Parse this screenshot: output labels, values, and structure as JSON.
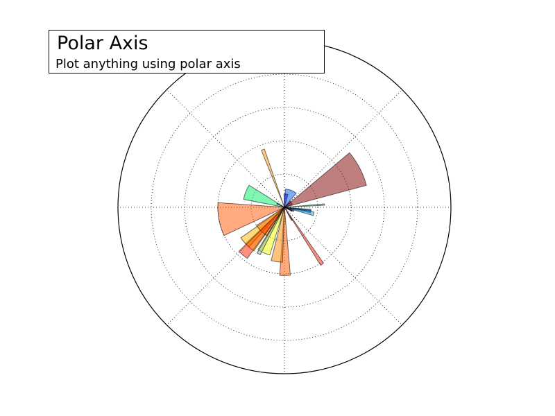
{
  "header": {
    "title": "Polar Axis",
    "subtitle": "Plot anything using polar axis"
  },
  "chart_data": {
    "type": "bar",
    "projection": "polar",
    "title": "Polar Axis",
    "subtitle": "Plot anything using polar axis",
    "theta_unit": "degrees",
    "r_range": [
      0,
      10
    ],
    "r_gridlines": [
      2,
      4,
      6,
      8
    ],
    "theta_gridlines": [
      0,
      45,
      90,
      135,
      180,
      225,
      270,
      315
    ],
    "grid": true,
    "grid_style": "dotted",
    "bar_alpha": 0.5,
    "bars": [
      {
        "theta": [
          3,
          5
        ],
        "r": 2.4,
        "color": "#00cc44"
      },
      {
        "theta": [
          -8.5,
          -4.5
        ],
        "r": 1.6,
        "color": "#0044ff"
      },
      {
        "theta": [
          -12,
          -6.5
        ],
        "r": 1.6,
        "color": "#00b8ff"
      },
      {
        "theta": [
          -16,
          -9
        ],
        "r": 1.8,
        "color": "#00aaff"
      },
      {
        "theta": [
          -25,
          -18
        ],
        "r": 0.6,
        "color": "#2200aa"
      },
      {
        "theta": [
          -29,
          -22
        ],
        "r": 0.5,
        "color": "#0000aa"
      },
      {
        "theta": [
          -58,
          -55
        ],
        "r": 4.1,
        "color": "#ee2200"
      },
      {
        "theta": [
          -62,
          -59
        ],
        "r": 0.9,
        "color": "#ff3300"
      },
      {
        "theta": [
          -94,
          -85
        ],
        "r": 4.1,
        "color": "#ff5500"
      },
      {
        "theta": [
          -104,
          -92
        ],
        "r": 3.3,
        "color": "#ff8800"
      },
      {
        "theta": [
          -122,
          -107
        ],
        "r": 3.0,
        "color": "#eeff00"
      },
      {
        "theta": [
          -121,
          -117
        ],
        "r": 3.2,
        "color": "#88aaaa"
      },
      {
        "theta": [
          -137,
          -125
        ],
        "r": 3.2,
        "color": "#ffff00"
      },
      {
        "theta": [
          -145,
          -132
        ],
        "r": 3.2,
        "color": "#ffb800"
      },
      {
        "theta": [
          -147,
          -122
        ],
        "r": 2.0,
        "color": "#ff6600"
      },
      {
        "theta": [
          -136,
          -126
        ],
        "r": 3.8,
        "color": "#ff2200"
      },
      {
        "theta": [
          -184,
          -155
        ],
        "r": 4.0,
        "color": "#ff5500"
      },
      {
        "theta": [
          148,
          169
        ],
        "r": 2.5,
        "color": "#00ee66"
      },
      {
        "theta": [
          109,
          112
        ],
        "r": 3.7,
        "color": "#ffa000"
      },
      {
        "theta": [
          152,
          156
        ],
        "r": 0.5,
        "color": "#0000cc"
      },
      {
        "theta": [
          50,
          87
        ],
        "r": 1.1,
        "color": "#0055ee"
      },
      {
        "theta": [
          75,
          92
        ],
        "r": 0.8,
        "color": "#0011ff"
      },
      {
        "theta": [
          20,
          45
        ],
        "r": 0.5,
        "color": "#6600cc"
      },
      {
        "theta": [
          15,
          40
        ],
        "r": 5.1,
        "color": "#800000"
      }
    ]
  }
}
